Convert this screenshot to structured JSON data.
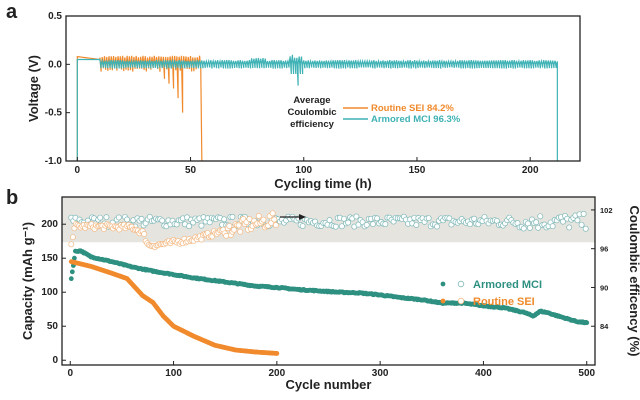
{
  "chart_data": [
    {
      "panel_label": "a",
      "type": "line",
      "xlabel": "Cycling time (h)",
      "ylabel": "Voltage (V)",
      "xlim": [
        -5,
        222
      ],
      "ylim": [
        -1.0,
        0.5
      ],
      "xticks": [
        0,
        50,
        100,
        150,
        200
      ],
      "yticks": [
        0.5,
        0.0,
        -0.5,
        -1.0
      ],
      "ytick_labels": [
        "0.5",
        "0.0",
        "-0.5",
        "-1.0"
      ],
      "legend_title": "Average Coulombic efficiency",
      "legend_placement": "center",
      "series": [
        {
          "name": "Routine SEI 84.2%",
          "color": "#F08A2C",
          "start_h": 0,
          "end_h": 55,
          "initial_voltage": 0.08,
          "oscillation_amplitude": 0.07,
          "negative_spikes": [
            [
              38,
              -0.15
            ],
            [
              40,
              -0.2
            ],
            [
              42,
              -0.25
            ],
            [
              44,
              -0.35
            ],
            [
              46,
              -0.5
            ],
            [
              47.5,
              -0.9
            ],
            [
              49.5,
              -0.78
            ],
            [
              51.5,
              -0.68
            ],
            [
              53.5,
              -1.0
            ],
            [
              55,
              -1.0
            ]
          ]
        },
        {
          "name": "Armored MCI 96.3%",
          "color": "#3FB2B5",
          "start_h": 0,
          "end_h": 212,
          "initial_voltage": 0.05,
          "oscillation_amplitude": 0.04,
          "features": [
            [
              80,
              0.07
            ],
            [
              96,
              0.1
            ],
            [
              97,
              -0.22
            ]
          ]
        }
      ]
    },
    {
      "panel_label": "b",
      "type": "scatter",
      "xlabel": "Cycle number",
      "ylabel": "Capacity (mAh g⁻¹)",
      "ylabel_right": "Coulombic efficency (%)",
      "xlim": [
        -8,
        508
      ],
      "ylim": [
        -7,
        240
      ],
      "ylim_right": [
        78,
        104
      ],
      "xticks": [
        0,
        100,
        200,
        300,
        400,
        500
      ],
      "yticks": [
        0,
        50,
        100,
        150,
        200
      ],
      "yticks_right": [
        84,
        90,
        96,
        102
      ],
      "shaded_band_right": [
        97,
        104
      ],
      "arrow_direction": "right",
      "legend_placement": "right",
      "series": [
        {
          "name": "Armored MCI",
          "color": "#2E9080",
          "capacity": [
            [
              1,
              120
            ],
            [
              5,
              160
            ],
            [
              10,
              161
            ],
            [
              20,
              152
            ],
            [
              40,
              145
            ],
            [
              60,
              137
            ],
            [
              80,
              131
            ],
            [
              100,
              126
            ],
            [
              120,
              121
            ],
            [
              140,
              117
            ],
            [
              160,
              113
            ],
            [
              180,
              109
            ],
            [
              200,
              107
            ],
            [
              220,
              104
            ],
            [
              240,
              102
            ],
            [
              260,
              100
            ],
            [
              280,
              99
            ],
            [
              300,
              96
            ],
            [
              320,
              92
            ],
            [
              340,
              89
            ],
            [
              360,
              84
            ],
            [
              380,
              84
            ],
            [
              400,
              80
            ],
            [
              420,
              77
            ],
            [
              440,
              70
            ],
            [
              448,
              65
            ],
            [
              455,
              72
            ],
            [
              462,
              70
            ],
            [
              470,
              66
            ],
            [
              490,
              57
            ],
            [
              500,
              55
            ]
          ],
          "coulombic_efficiency_mean": 100.2,
          "coulombic_efficiency_spread": 0.8
        },
        {
          "name": "Routine SEI",
          "color": "#F08A2C",
          "capacity": [
            [
              1,
              145
            ],
            [
              20,
              138
            ],
            [
              40,
              128
            ],
            [
              55,
              120
            ],
            [
              70,
              95
            ],
            [
              80,
              85
            ],
            [
              90,
              65
            ],
            [
              100,
              50
            ],
            [
              120,
              35
            ],
            [
              140,
              22
            ],
            [
              160,
              15
            ],
            [
              180,
              12
            ],
            [
              200,
              10
            ]
          ],
          "coulombic_efficiency": [
            [
              1,
              97
            ],
            [
              5,
              99.5
            ],
            [
              60,
              99.3
            ],
            [
              70,
              98.5
            ],
            [
              76,
              96.5
            ],
            [
              90,
              96.7
            ],
            [
              120,
              97.5
            ],
            [
              150,
              98.8
            ],
            [
              175,
              99.8
            ],
            [
              200,
              100.5
            ]
          ]
        }
      ]
    }
  ]
}
